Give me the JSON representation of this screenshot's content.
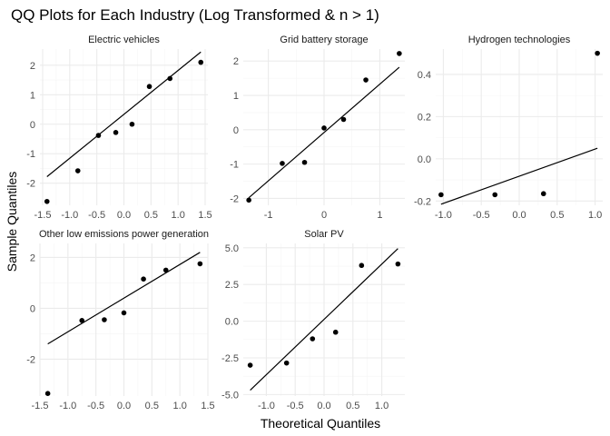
{
  "chart_data": {
    "type": "scatter",
    "title": "QQ Plots for Each Industry (Log Transformed & n > 1)",
    "xlabel": "Theoretical Quantiles",
    "ylabel": "Sample Quantiles",
    "grid": true,
    "legend": "none",
    "colors": {
      "point": "#000000",
      "line": "#000000",
      "grid_major": "#ebebeb",
      "grid_minor": "#f5f5f5",
      "text": "#4d4d4d"
    },
    "panels": [
      {
        "name": "Electric vehicles",
        "xlim": [
          -1.55,
          1.55
        ],
        "ylim": [
          -2.75,
          2.55
        ],
        "xticks": [
          -1.5,
          -1.0,
          -0.5,
          0.0,
          0.5,
          1.0,
          1.5
        ],
        "xtick_labels": [
          "-1.5",
          "-1.0",
          "-0.5",
          "0.0",
          "0.5",
          "1.0",
          "1.5"
        ],
        "yticks": [
          -2,
          -1,
          0,
          1,
          2
        ],
        "ytick_labels": [
          "-2",
          "-1",
          "0",
          "1",
          "2"
        ],
        "points": [
          [
            -1.42,
            -2.62
          ],
          [
            -0.85,
            -1.58
          ],
          [
            -0.47,
            -0.38
          ],
          [
            -0.15,
            -0.28
          ],
          [
            0.15,
            0.0
          ],
          [
            0.47,
            1.28
          ],
          [
            0.85,
            1.55
          ],
          [
            1.42,
            2.1
          ]
        ],
        "line": [
          [
            -1.42,
            -1.78
          ],
          [
            1.42,
            2.45
          ]
        ]
      },
      {
        "name": "Grid battery storage",
        "xlim": [
          -1.45,
          1.45
        ],
        "ylim": [
          -2.2,
          2.35
        ],
        "xticks": [
          -1.0,
          0.0,
          1.0
        ],
        "xtick_labels": [
          "-1",
          "0",
          "1"
        ],
        "yticks": [
          -2,
          -1,
          0,
          1,
          2
        ],
        "ytick_labels": [
          "-2",
          "-1",
          "0",
          "1",
          "2"
        ],
        "points": [
          [
            -1.35,
            -2.05
          ],
          [
            -0.75,
            -0.98
          ],
          [
            -0.35,
            -0.95
          ],
          [
            0.0,
            0.05
          ],
          [
            0.35,
            0.3
          ],
          [
            0.75,
            1.45
          ],
          [
            1.35,
            2.22
          ]
        ],
        "line": [
          [
            -1.35,
            -1.98
          ],
          [
            1.35,
            1.82
          ]
        ]
      },
      {
        "name": "Hydrogen technologies",
        "xlim": [
          -1.1,
          1.1
        ],
        "ylim": [
          -0.22,
          0.52
        ],
        "xticks": [
          -1.0,
          -0.5,
          0.0,
          0.5,
          1.0
        ],
        "xtick_labels": [
          "-1.0",
          "-0.5",
          "0.0",
          "0.5",
          "1.0"
        ],
        "yticks": [
          -0.2,
          0.0,
          0.2,
          0.4
        ],
        "ytick_labels": [
          "-0.2",
          "0.0",
          "0.2",
          "0.4"
        ],
        "points": [
          [
            -1.03,
            -0.17
          ],
          [
            -0.32,
            -0.17
          ],
          [
            0.32,
            -0.165
          ],
          [
            1.03,
            0.5
          ]
        ],
        "line": [
          [
            -1.03,
            -0.215
          ],
          [
            1.03,
            0.05
          ]
        ]
      },
      {
        "name": "Other low emissions power generation",
        "xlim": [
          -1.5,
          1.5
        ],
        "ylim": [
          -3.45,
          2.55
        ],
        "xticks": [
          -1.5,
          -1.0,
          -0.5,
          0.0,
          0.5,
          1.0,
          1.5
        ],
        "xtick_labels": [
          "-1.5",
          "-1.0",
          "-0.5",
          "0.0",
          "0.5",
          "1.0",
          "1.5"
        ],
        "yticks": [
          -2,
          0,
          2
        ],
        "ytick_labels": [
          "-2",
          "0",
          "2"
        ],
        "points": [
          [
            -1.36,
            -3.35
          ],
          [
            -0.75,
            -0.48
          ],
          [
            -0.35,
            -0.45
          ],
          [
            0.0,
            -0.18
          ],
          [
            0.35,
            1.15
          ],
          [
            0.75,
            1.5
          ],
          [
            1.36,
            1.75
          ]
        ],
        "line": [
          [
            -1.36,
            -1.4
          ],
          [
            1.36,
            2.2
          ]
        ]
      },
      {
        "name": "Solar PV",
        "xlim": [
          -1.4,
          1.4
        ],
        "ylim": [
          -5.1,
          5.3
        ],
        "xticks": [
          -1.0,
          -0.5,
          0.0,
          0.5,
          1.0
        ],
        "xtick_labels": [
          "-1.0",
          "-0.5",
          "0.0",
          "0.5",
          "1.0"
        ],
        "yticks": [
          -5.0,
          -2.5,
          0.0,
          2.5,
          5.0
        ],
        "ytick_labels": [
          "-5.0",
          "-2.5",
          "0.0",
          "2.5",
          "5.0"
        ],
        "points": [
          [
            -1.28,
            -3.0
          ],
          [
            -0.65,
            -2.85
          ],
          [
            -0.2,
            -1.2
          ],
          [
            0.2,
            -0.75
          ],
          [
            0.65,
            3.8
          ],
          [
            1.28,
            3.9
          ]
        ],
        "line": [
          [
            -1.28,
            -4.7
          ],
          [
            1.28,
            4.95
          ]
        ]
      }
    ]
  }
}
